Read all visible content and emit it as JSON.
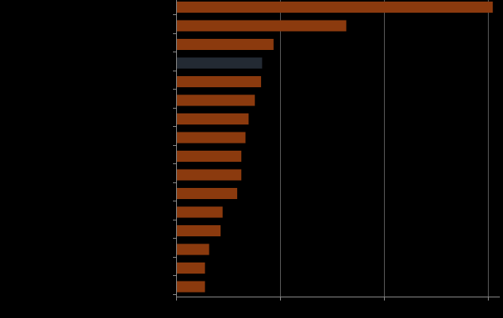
{
  "chart_data": {
    "type": "bar",
    "orientation": "horizontal",
    "title": "",
    "xlabel": "",
    "ylabel": "",
    "xlim": [
      0,
      3.1
    ],
    "x_gridlines": [
      1,
      2,
      3
    ],
    "grid": "vertical",
    "legend": "none",
    "categories": [
      "",
      "",
      "",
      "",
      "",
      "",
      "",
      "",
      "",
      "",
      "",
      "",
      "",
      "",
      "",
      ""
    ],
    "values": [
      3.04,
      1.63,
      0.93,
      0.82,
      0.81,
      0.75,
      0.69,
      0.66,
      0.62,
      0.62,
      0.58,
      0.44,
      0.42,
      0.31,
      0.27,
      0.27
    ],
    "highlight_index": 3,
    "colors": {
      "bar": "#8b3a0e",
      "highlight": "#232a33",
      "background": "#000000",
      "axis": "#8a8a8a",
      "grid": "#5a5a5a"
    }
  }
}
